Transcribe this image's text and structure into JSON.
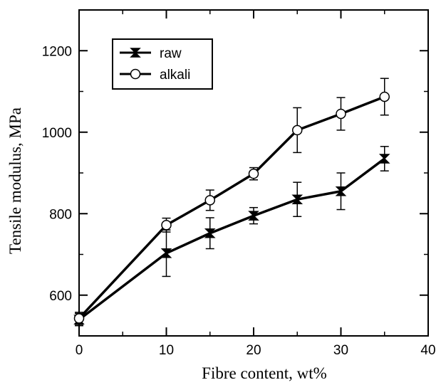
{
  "chart_data": {
    "type": "line",
    "title": "",
    "xlabel": "Fibre content, wt%",
    "ylabel": "Tensile modulus, MPa",
    "xlim": [
      0,
      40
    ],
    "ylim": [
      500,
      1300
    ],
    "xticks": [
      0,
      10,
      20,
      30,
      40
    ],
    "yticks": [
      600,
      800,
      1000,
      1200
    ],
    "xtick_labels": [
      "0",
      "10",
      "20",
      "30",
      "40"
    ],
    "ytick_labels": [
      "600",
      "800",
      "1000",
      "1200"
    ],
    "grid": false,
    "legend_position": "top-left",
    "series": [
      {
        "name": "raw",
        "marker": "bowtie-filled",
        "x": [
          0,
          10,
          15,
          20,
          25,
          30,
          35
        ],
        "y": [
          540,
          703,
          752,
          795,
          835,
          855,
          935
        ],
        "err": [
          15,
          57,
          38,
          20,
          42,
          45,
          30
        ]
      },
      {
        "name": "alkali",
        "marker": "circle-open",
        "x": [
          0,
          10,
          15,
          20,
          25,
          30,
          35
        ],
        "y": [
          543,
          772,
          833,
          898,
          1005,
          1045,
          1087
        ],
        "err": [
          15,
          17,
          25,
          15,
          55,
          40,
          45
        ]
      }
    ]
  }
}
